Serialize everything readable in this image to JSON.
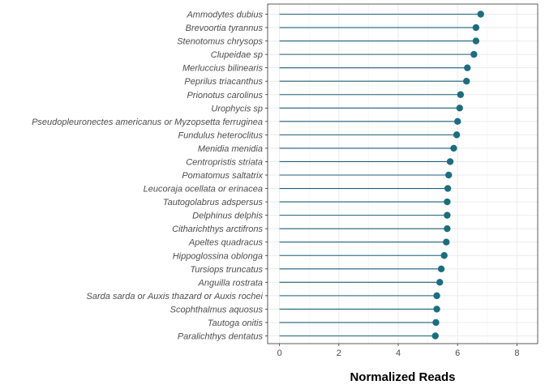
{
  "chart_data": {
    "type": "lollipop",
    "title": "",
    "xlabel": "Normalized Reads",
    "ylabel": "",
    "xlim": [
      -0.4,
      8.7
    ],
    "x_ticks": [
      0,
      2,
      4,
      6,
      8
    ],
    "grid": true,
    "colors": {
      "stem": "#1f5f7a",
      "point": "#1a6e80",
      "grid": "#ebebeb",
      "panel_border": "#333333"
    },
    "categories": [
      "Ammodytes dubius",
      "Brevoortia tyrannus",
      "Stenotomus chrysops",
      "Clupeidae sp",
      "Merluccius bilinearis",
      "Peprilus triacanthus",
      "Prionotus carolinus",
      "Urophycis sp",
      "Pseudopleuronectes americanus or Myzopsetta ferruginea",
      "Fundulus heteroclitus",
      "Menidia menidia",
      "Centropristis striata",
      "Pomatomus saltatrix",
      "Leucoraja ocellata or erinacea",
      "Tautogolabrus adspersus",
      "Delphinus delphis",
      "Citharichthys arctifrons",
      "Apeltes quadracus",
      "Hippoglossina oblonga",
      "Tursiops truncatus",
      "Anguilla rostrata",
      "Sarda sarda or Auxis thazard or Auxis rochei",
      "Scophthalmus aquosus",
      "Tautoga onitis",
      "Paralichthys dentatus"
    ],
    "values": [
      6.78,
      6.62,
      6.62,
      6.55,
      6.33,
      6.3,
      6.1,
      6.07,
      6.0,
      5.97,
      5.87,
      5.75,
      5.7,
      5.67,
      5.65,
      5.65,
      5.65,
      5.62,
      5.55,
      5.45,
      5.4,
      5.3,
      5.3,
      5.27,
      5.25
    ]
  }
}
